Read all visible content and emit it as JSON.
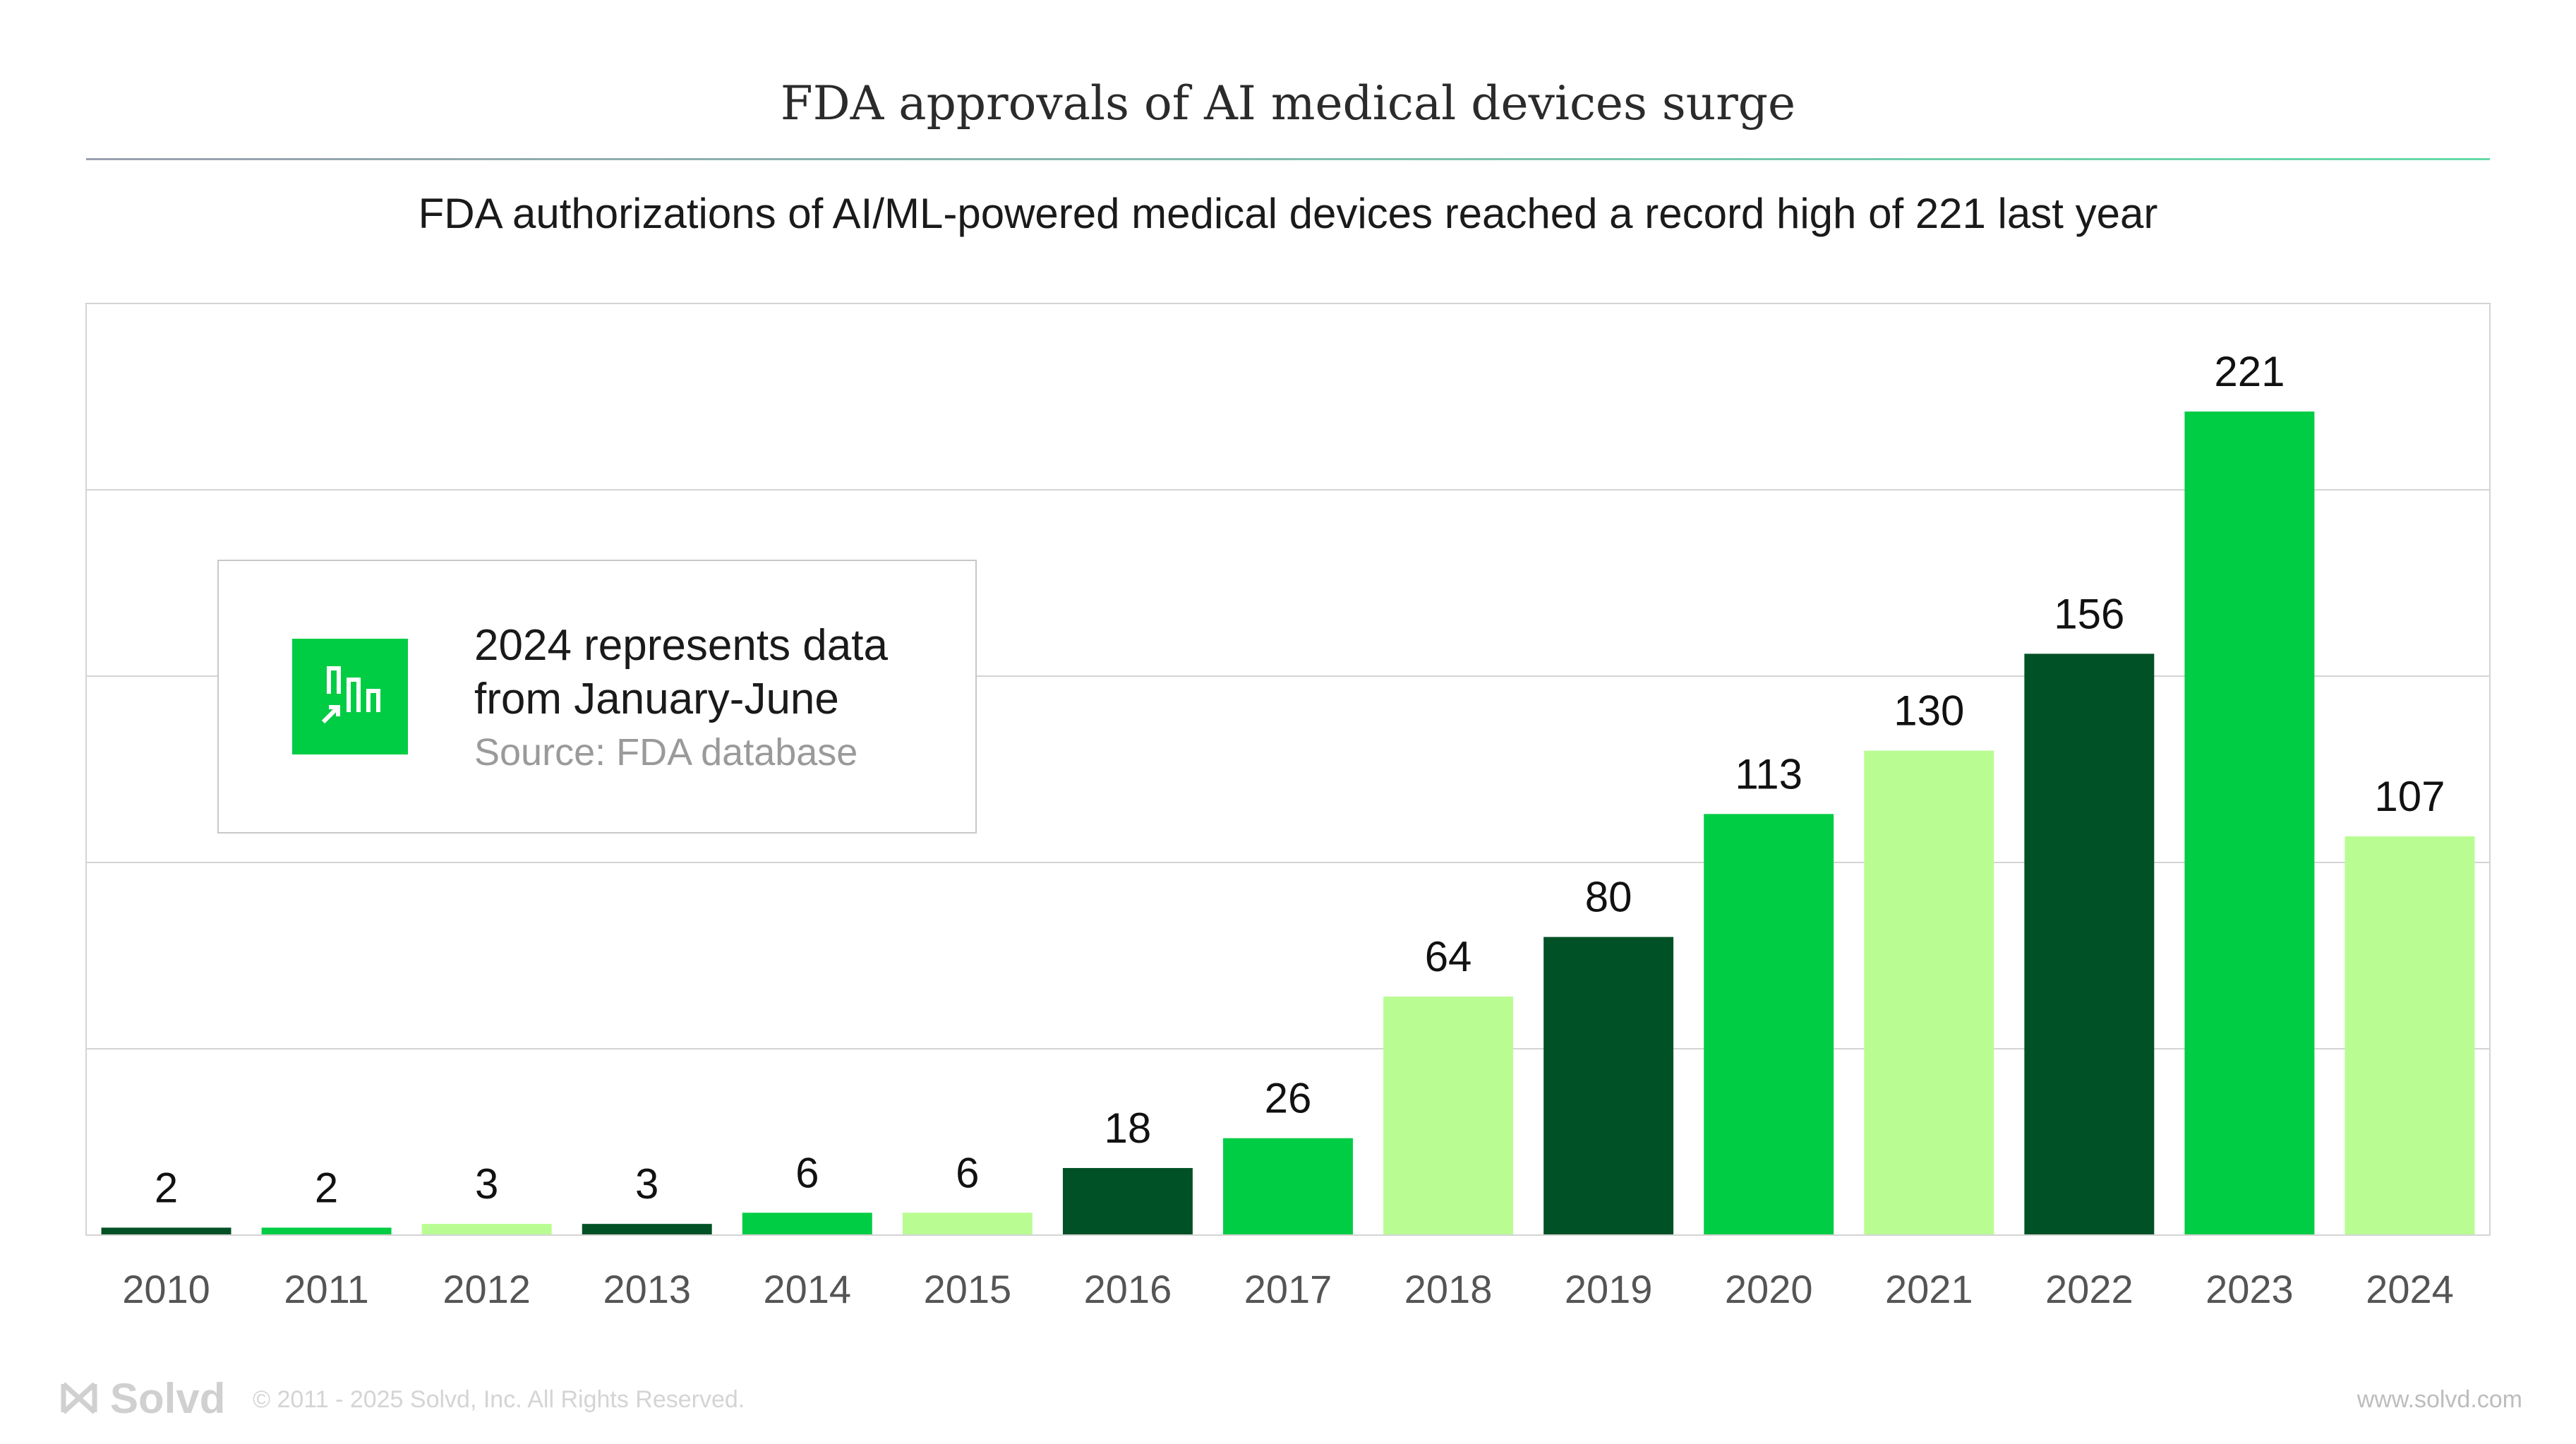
{
  "title": "FDA approvals of AI medical devices surge",
  "subtitle": "FDA authorizations of AI/ML-powered medical devices reached a record high of 221 last year",
  "note": {
    "line1": "2024 represents data",
    "line2": "from January-June",
    "source": "Source: FDA database",
    "icon": "bar-chart-arrow-icon"
  },
  "footer": {
    "logo": "Solvd",
    "copyright": "© 2011 - 2025 Solvd, Inc. All Rights Reserved.",
    "url": "www.solvd.com"
  },
  "colors": {
    "dark_green": "#005125",
    "mid_green": "#00cc44",
    "light_green": "#b9fd92",
    "title_rule_start": "#9aa0b0",
    "title_rule_end": "#66d9a8",
    "grid": "#d4d4d4"
  },
  "chart_data": {
    "type": "bar",
    "categories": [
      "2010",
      "2011",
      "2012",
      "2013",
      "2014",
      "2015",
      "2016",
      "2017",
      "2018",
      "2019",
      "2020",
      "2021",
      "2022",
      "2023",
      "2024"
    ],
    "values": [
      2,
      2,
      3,
      3,
      6,
      6,
      18,
      26,
      64,
      80,
      113,
      130,
      156,
      221,
      107
    ],
    "bar_colors": [
      "dark_green",
      "mid_green",
      "light_green",
      "dark_green",
      "mid_green",
      "light_green",
      "dark_green",
      "mid_green",
      "light_green",
      "dark_green",
      "mid_green",
      "light_green",
      "dark_green",
      "mid_green",
      "light_green"
    ],
    "ylim": [
      0,
      250
    ],
    "gridlines": [
      50,
      100,
      150,
      200
    ],
    "y_tick_labels_shown": false,
    "data_labels": true,
    "grid": true
  }
}
